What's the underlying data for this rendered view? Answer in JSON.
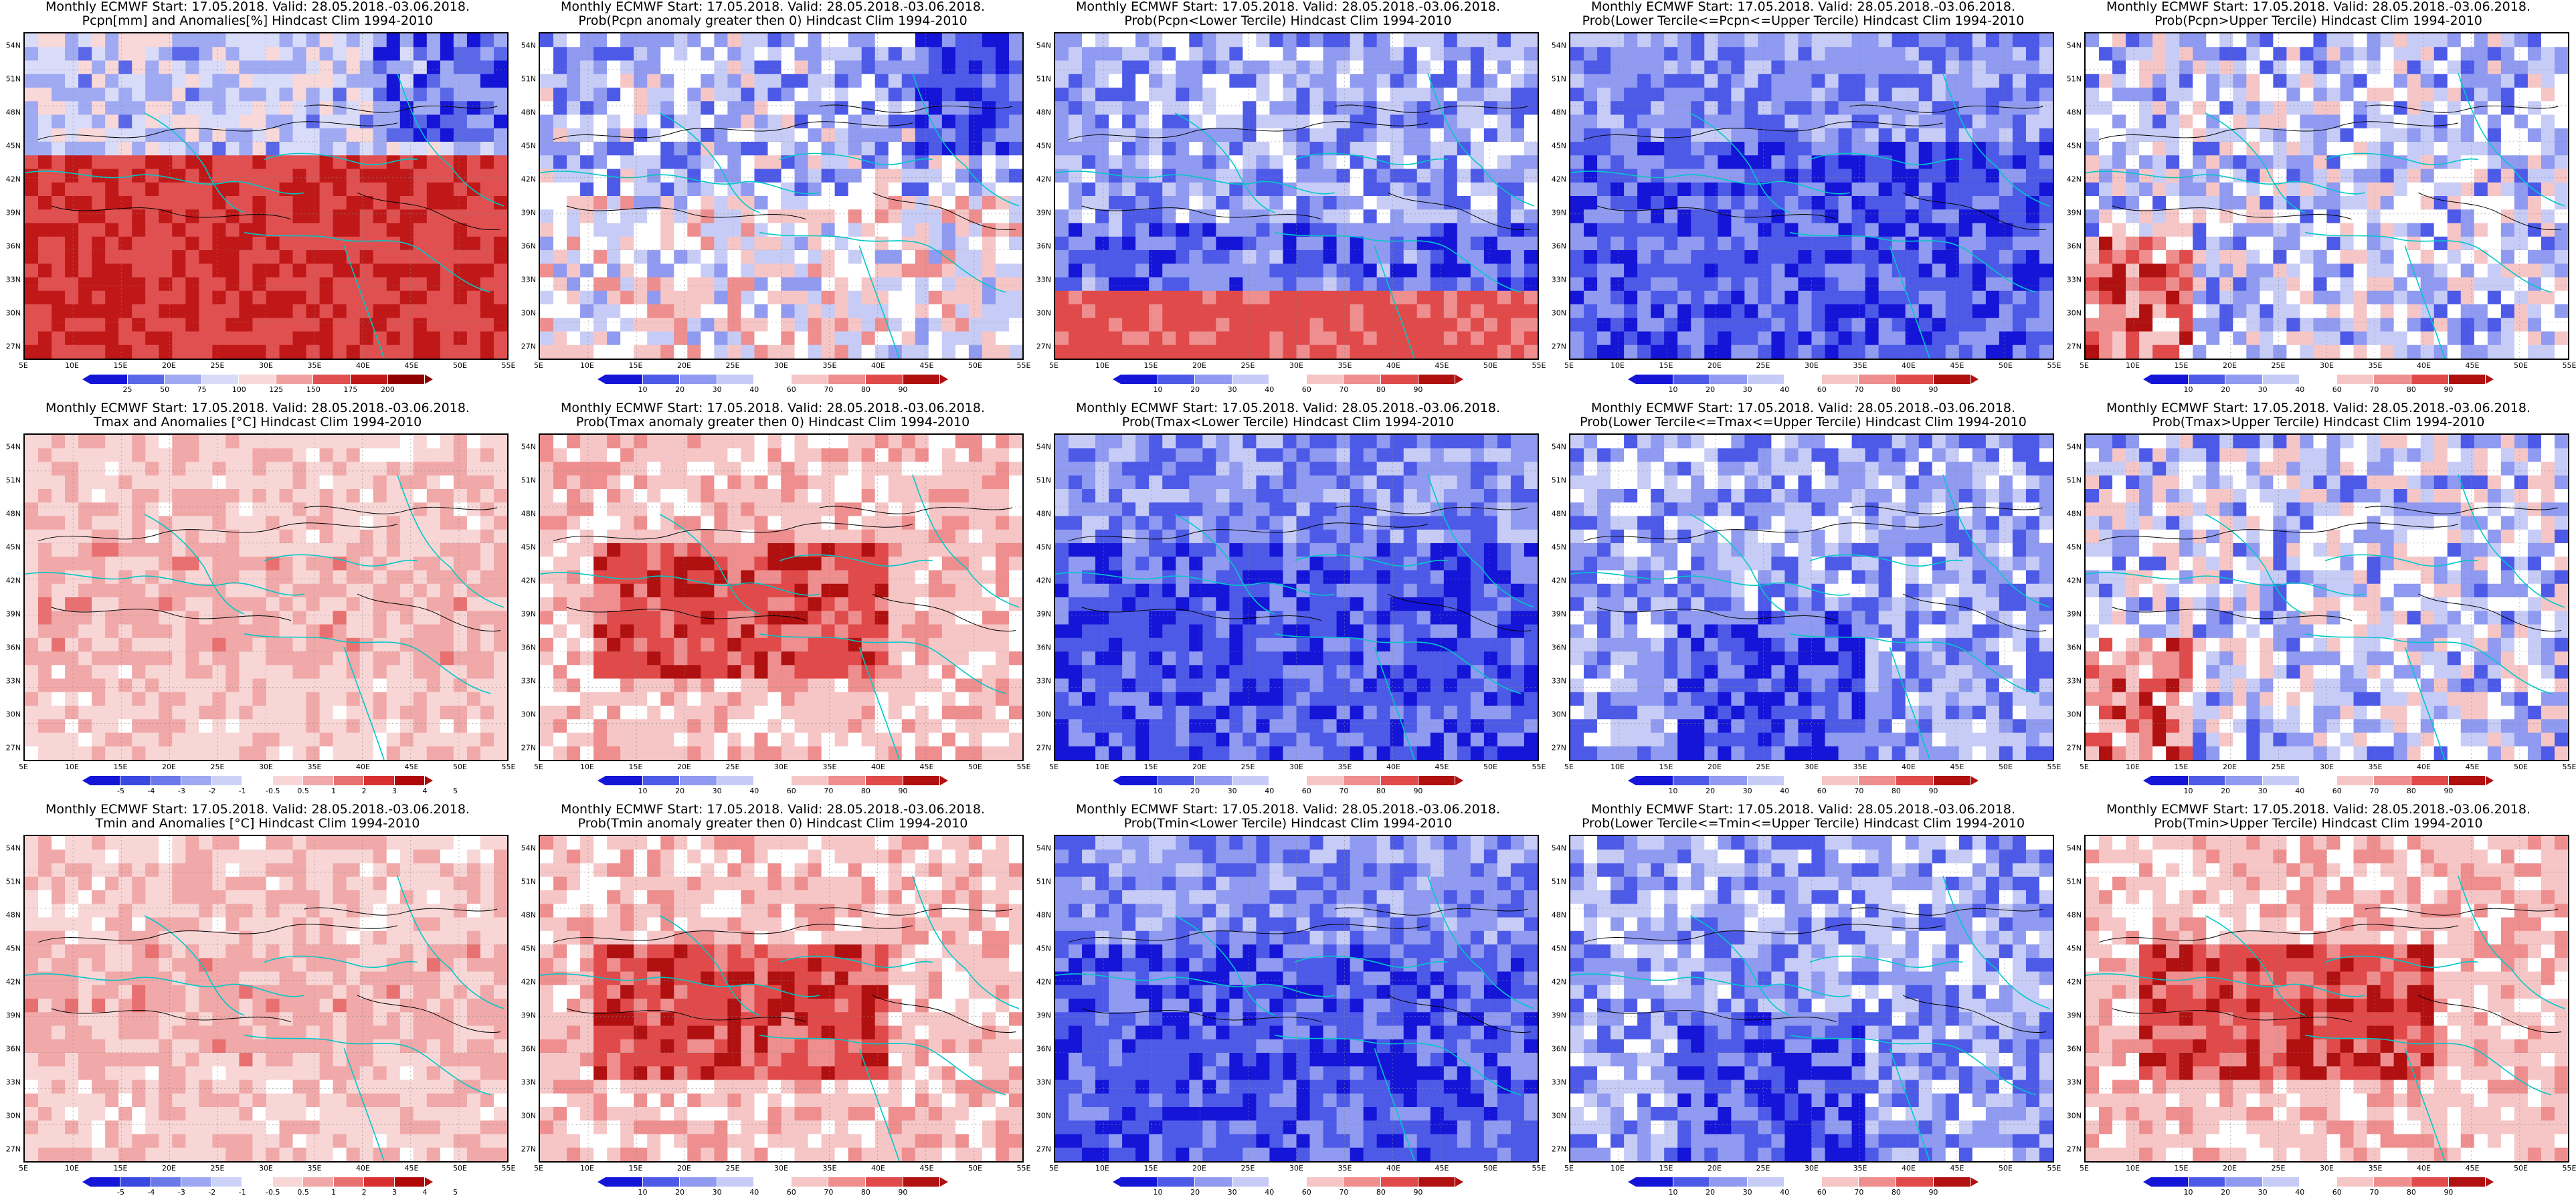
{
  "panels": [
    {
      "title_line1": "Monthly ECMWF Start: 17.05.2018. Valid: 28.05.2018.-03.06.2018.",
      "title_line2": "Pcpn[mm] and Anomalies[%] Hindcast Clim 1994-2010",
      "pattern": "precip",
      "colorbar": [
        "25",
        "50",
        "75",
        "100",
        "125",
        "150",
        "175",
        "200"
      ]
    },
    {
      "title_line1": "Monthly ECMWF Start: 17.05.2018. Valid: 28.05.2018.-03.06.2018.",
      "title_line2": "Prob(Pcpn anomaly greater then 0) Hindcast Clim 1994-2010",
      "pattern": "mixed",
      "colorbar": [
        "10",
        "20",
        "30",
        "40",
        "60",
        "70",
        "80",
        "90"
      ]
    },
    {
      "title_line1": "Monthly ECMWF Start: 17.05.2018. Valid: 28.05.2018.-03.06.2018.",
      "title_line2": "Prob(Pcpn<Lower Tercile) Hindcast Clim 1994-2010",
      "pattern": "blue_south_red",
      "colorbar": [
        "10",
        "20",
        "30",
        "40",
        "60",
        "70",
        "80",
        "90"
      ]
    },
    {
      "title_line1": "Monthly ECMWF Start: 17.05.2018. Valid: 28.05.2018.-03.06.2018.",
      "title_line2": "Prob(Lower Tercile<=Pcpn<=Upper Tercile) Hindcast Clim 1994-2010",
      "pattern": "deep_blue",
      "colorbar": [
        "10",
        "20",
        "30",
        "40",
        "60",
        "70",
        "80",
        "90"
      ]
    },
    {
      "title_line1": "Monthly ECMWF Start: 17.05.2018. Valid: 28.05.2018.-03.06.2018.",
      "title_line2": "Prob(Pcpn>Upper Tercile) Hindcast Clim 1994-2010",
      "pattern": "mixed_red",
      "colorbar": [
        "10",
        "20",
        "30",
        "40",
        "60",
        "70",
        "80",
        "90"
      ]
    },
    {
      "title_line1": "Monthly ECMWF Start: 17.05.2018. Valid: 28.05.2018.-03.06.2018.",
      "title_line2": "Tmax and Anomalies [°C] Hindcast Clim 1994-2010",
      "pattern": "warm_light",
      "colorbar": [
        "-5",
        "-4",
        "-3",
        "-2",
        "-1",
        "-0.5",
        "0.5",
        "1",
        "2",
        "3",
        "4",
        "5"
      ]
    },
    {
      "title_line1": "Monthly ECMWF Start: 17.05.2018. Valid: 28.05.2018.-03.06.2018.",
      "title_line2": "Prob(Tmax anomaly greater then 0) Hindcast Clim 1994-2010",
      "pattern": "warm_strong",
      "colorbar": [
        "10",
        "20",
        "30",
        "40",
        "60",
        "70",
        "80",
        "90"
      ]
    },
    {
      "title_line1": "Monthly ECMWF Start: 17.05.2018. Valid: 28.05.2018.-03.06.2018.",
      "title_line2": "Prob(Tmax<Lower Tercile) Hindcast Clim 1994-2010",
      "pattern": "deep_blue",
      "colorbar": [
        "10",
        "20",
        "30",
        "40",
        "60",
        "70",
        "80",
        "90"
      ]
    },
    {
      "title_line1": "Monthly ECMWF Start: 17.05.2018. Valid: 28.05.2018.-03.06.2018.",
      "title_line2": "Prob(Lower Tercile<=Tmax<=Upper Tercile) Hindcast Clim 1994-2010",
      "pattern": "blue_mid",
      "colorbar": [
        "10",
        "20",
        "30",
        "40",
        "60",
        "70",
        "80",
        "90"
      ]
    },
    {
      "title_line1": "Monthly ECMWF Start: 17.05.2018. Valid: 28.05.2018.-03.06.2018.",
      "title_line2": "Prob(Tmax>Upper Tercile) Hindcast Clim 1994-2010",
      "pattern": "mixed_red",
      "colorbar": [
        "10",
        "20",
        "30",
        "40",
        "60",
        "70",
        "80",
        "90"
      ]
    },
    {
      "title_line1": "Monthly ECMWF Start: 17.05.2018. Valid: 28.05.2018.-03.06.2018.",
      "title_line2": "Tmin and Anomalies [°C] Hindcast Clim 1994-2010",
      "pattern": "warm_light",
      "colorbar": [
        "-5",
        "-4",
        "-3",
        "-2",
        "-1",
        "-0.5",
        "0.5",
        "1",
        "2",
        "3",
        "4",
        "5"
      ]
    },
    {
      "title_line1": "Monthly ECMWF Start: 17.05.2018. Valid: 28.05.2018.-03.06.2018.",
      "title_line2": "Prob(Tmin anomaly greater then 0) Hindcast Clim 1994-2010",
      "pattern": "warm_strong",
      "colorbar": [
        "10",
        "20",
        "30",
        "40",
        "60",
        "70",
        "80",
        "90"
      ]
    },
    {
      "title_line1": "Monthly ECMWF Start: 17.05.2018. Valid: 28.05.2018.-03.06.2018.",
      "title_line2": "Prob(Tmin<Lower Tercile) Hindcast Clim 1994-2010",
      "pattern": "deep_blue",
      "colorbar": [
        "10",
        "20",
        "30",
        "40",
        "60",
        "70",
        "80",
        "90"
      ]
    },
    {
      "title_line1": "Monthly ECMWF Start: 17.05.2018. Valid: 28.05.2018.-03.06.2018.",
      "title_line2": "Prob(Lower Tercile<=Tmin<=Upper Tercile) Hindcast Clim 1994-2010",
      "pattern": "blue_mid",
      "colorbar": [
        "10",
        "20",
        "30",
        "40",
        "60",
        "70",
        "80",
        "90"
      ]
    },
    {
      "title_line1": "Monthly ECMWF Start: 17.05.2018. Valid: 28.05.2018.-03.06.2018.",
      "title_line2": "Prob(Tmin>Upper Tercile) Hindcast Clim 1994-2010",
      "pattern": "warm_strong",
      "colorbar": [
        "10",
        "20",
        "30",
        "40",
        "60",
        "70",
        "80",
        "90"
      ]
    }
  ],
  "lat_ticks": [
    "54N",
    "51N",
    "48N",
    "45N",
    "42N",
    "39N",
    "36N",
    "33N",
    "30N",
    "27N"
  ],
  "lon_ticks": [
    "5E",
    "10E",
    "15E",
    "20E",
    "25E",
    "30E",
    "35E",
    "40E",
    "45E",
    "50E",
    "55E"
  ],
  "prob_palette": [
    "#1515d8",
    "#4d5ae8",
    "#8f9af0",
    "#c7ccf6",
    "#ffffff",
    "#f6c6c6",
    "#ee8e8e",
    "#e04a4a",
    "#b01010"
  ],
  "anom_palette": [
    "#1515d8",
    "#3848e0",
    "#6a78ea",
    "#9ea8f2",
    "#cdd2f8",
    "#ffffff",
    "#f8d6d6",
    "#f0a8a8",
    "#e87070",
    "#d83030",
    "#b00808"
  ],
  "precip_palette": [
    "#1515d8",
    "#5a68e8",
    "#a0aaf2",
    "#d8dcf8",
    "#f8d8d8",
    "#f0a0a0",
    "#e05050",
    "#c01818",
    "#900000"
  ],
  "contour_color": "#000000",
  "border_color": "#00c8c8"
}
